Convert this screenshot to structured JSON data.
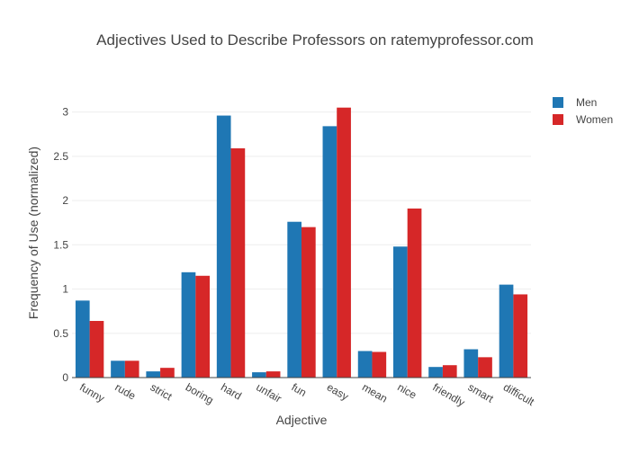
{
  "chart_data": {
    "type": "bar",
    "title": "Adjectives Used to Describe Professors on ratemyprofessor.com",
    "xlabel": "Adjective",
    "ylabel": "Frequency of Use (normalized)",
    "ylim": [
      0,
      3.25
    ],
    "yticks": [
      0,
      0.5,
      1,
      1.5,
      2,
      2.5,
      3
    ],
    "ytick_labels": [
      "0",
      "0.5",
      "1",
      "1.5",
      "2",
      "2.5",
      "3"
    ],
    "grid": true,
    "legend_position": "top-right",
    "categories": [
      "funny",
      "rude",
      "strict",
      "boring",
      "hard",
      "unfair",
      "fun",
      "easy",
      "mean",
      "nice",
      "friendly",
      "smart",
      "difficult"
    ],
    "series": [
      {
        "name": "Men",
        "color": "#1f77b4",
        "values": [
          0.87,
          0.19,
          0.07,
          1.19,
          2.96,
          0.06,
          1.76,
          2.84,
          0.3,
          1.48,
          0.12,
          0.32,
          1.05
        ]
      },
      {
        "name": "Women",
        "color": "#d62728",
        "values": [
          0.64,
          0.19,
          0.11,
          1.15,
          2.59,
          0.07,
          1.7,
          3.05,
          0.29,
          1.91,
          0.14,
          0.23,
          0.94
        ]
      }
    ]
  }
}
